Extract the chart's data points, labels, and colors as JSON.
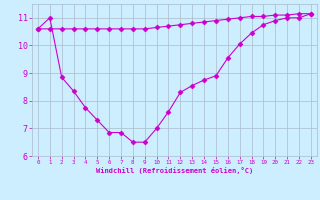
{
  "line1_x": [
    0,
    1,
    2,
    3,
    4,
    5,
    6,
    7,
    8,
    9,
    10,
    11,
    12,
    13,
    14,
    15,
    16,
    17,
    18,
    19,
    20,
    21,
    22,
    23
  ],
  "line1_y": [
    10.6,
    10.6,
    10.6,
    10.6,
    10.6,
    10.6,
    10.6,
    10.6,
    10.6,
    10.6,
    10.65,
    10.7,
    10.75,
    10.8,
    10.85,
    10.9,
    10.95,
    11.0,
    11.05,
    11.05,
    11.1,
    11.1,
    11.15,
    11.15
  ],
  "line2_x": [
    0,
    1,
    2,
    3,
    4,
    5,
    6,
    7,
    8,
    9,
    10,
    11,
    12,
    13,
    14,
    15,
    16,
    17,
    18,
    19,
    20,
    21,
    22,
    23
  ],
  "line2_y": [
    10.6,
    11.0,
    8.85,
    8.35,
    7.75,
    7.3,
    6.85,
    6.85,
    6.5,
    6.5,
    7.0,
    7.6,
    8.3,
    8.55,
    8.75,
    8.9,
    9.55,
    10.05,
    10.45,
    10.75,
    10.9,
    11.0,
    11.0,
    11.15
  ],
  "line_color": "#cc00cc",
  "background_color": "#cceeff",
  "xlabel": "Windchill (Refroidissement éolien,°C)",
  "ylim": [
    6,
    11.5
  ],
  "xlim": [
    -0.5,
    23.5
  ],
  "yticks": [
    6,
    7,
    8,
    9,
    10,
    11
  ],
  "xticks": [
    0,
    1,
    2,
    3,
    4,
    5,
    6,
    7,
    8,
    9,
    10,
    11,
    12,
    13,
    14,
    15,
    16,
    17,
    18,
    19,
    20,
    21,
    22,
    23
  ],
  "grid_color": "#aabbcc",
  "marker": "D",
  "markersize": 2.5,
  "linewidth": 0.8
}
